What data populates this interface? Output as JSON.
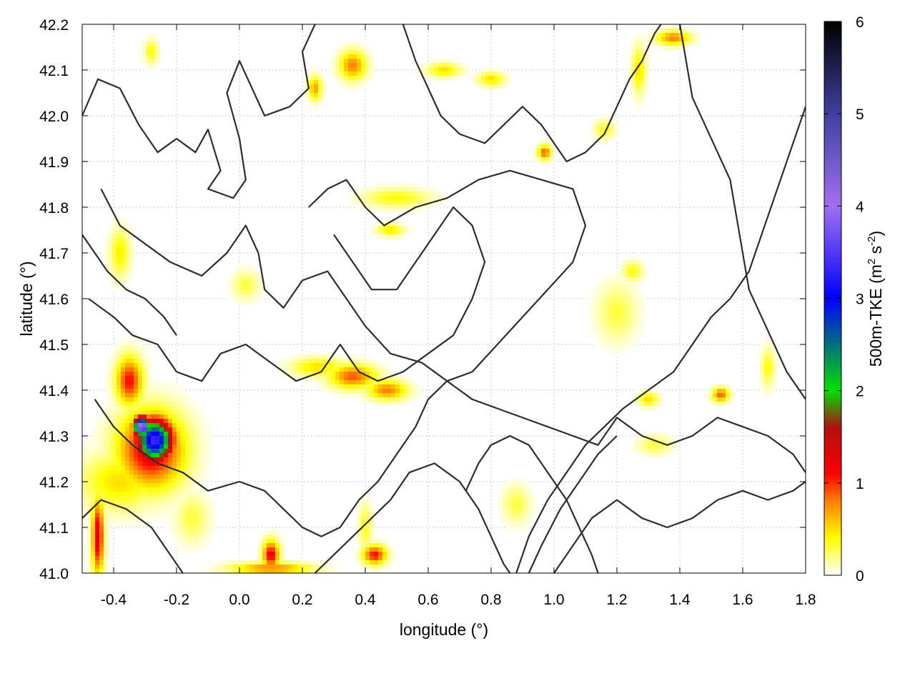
{
  "chart_data": {
    "type": "heatmap",
    "title": "",
    "xlabel": "longitude (°)",
    "ylabel": "latitude (°)",
    "xlim": [
      -0.5,
      1.8
    ],
    "ylim": [
      41.0,
      42.2
    ],
    "xticks": [
      "-0.4",
      "-0.2",
      "0.0",
      "0.2",
      "0.4",
      "0.6",
      "0.8",
      "1.0",
      "1.2",
      "1.4",
      "1.6",
      "1.8"
    ],
    "xtick_values": [
      -0.4,
      -0.2,
      0.0,
      0.2,
      0.4,
      0.6,
      0.8,
      1.0,
      1.2,
      1.4,
      1.6,
      1.8
    ],
    "yticks": [
      "41.0",
      "41.1",
      "41.2",
      "41.3",
      "41.4",
      "41.5",
      "41.6",
      "41.7",
      "41.8",
      "41.9",
      "42.0",
      "42.1",
      "42.2"
    ],
    "ytick_values": [
      41.0,
      41.1,
      41.2,
      41.3,
      41.4,
      41.5,
      41.6,
      41.7,
      41.8,
      41.9,
      42.0,
      42.1,
      42.2
    ],
    "grid": true,
    "colorbar": {
      "label": "500m-TKE (m² s⁻²)",
      "label_main": "500m-TKE (m",
      "label_sup1": "2",
      "label_mid": " s",
      "label_sup2": "-2",
      "label_end": ")",
      "range": [
        0,
        6
      ],
      "ticks": [
        "0",
        "1",
        "2",
        "3",
        "4",
        "5",
        "6"
      ],
      "tick_values": [
        0,
        1,
        2,
        3,
        4,
        5,
        6
      ],
      "stops": [
        {
          "value": 0.0,
          "color": "#ffffff"
        },
        {
          "value": 0.4,
          "color": "#ffff00"
        },
        {
          "value": 0.8,
          "color": "#ff8000"
        },
        {
          "value": 1.1,
          "color": "#ff0000"
        },
        {
          "value": 1.6,
          "color": "#b01010"
        },
        {
          "value": 2.0,
          "color": "#00e000"
        },
        {
          "value": 3.0,
          "color": "#0000ff"
        },
        {
          "value": 4.0,
          "color": "#a070f0"
        },
        {
          "value": 5.0,
          "color": "#4040a0"
        },
        {
          "value": 6.0,
          "color": "#000000"
        }
      ]
    },
    "tke_hotspots": [
      {
        "lon": -0.27,
        "lat": 41.29,
        "value": 3.4,
        "rx": 0.055,
        "ry": 0.045
      },
      {
        "lon": -0.31,
        "lat": 41.32,
        "value": 4.3,
        "rx": 0.025,
        "ry": 0.02
      },
      {
        "lon": -0.28,
        "lat": 41.27,
        "value": 1.3,
        "rx": 0.1,
        "ry": 0.08
      },
      {
        "lon": -0.38,
        "lat": 41.2,
        "value": 0.5,
        "rx": 0.12,
        "ry": 0.06
      },
      {
        "lon": -0.35,
        "lat": 41.42,
        "value": 1.1,
        "rx": 0.04,
        "ry": 0.05
      },
      {
        "lon": -0.45,
        "lat": 41.08,
        "value": 1.3,
        "rx": 0.018,
        "ry": 0.08
      },
      {
        "lon": 0.1,
        "lat": 41.04,
        "value": 1.2,
        "rx": 0.025,
        "ry": 0.03
      },
      {
        "lon": 0.1,
        "lat": 41.01,
        "value": 0.8,
        "rx": 0.12,
        "ry": 0.012
      },
      {
        "lon": 0.43,
        "lat": 41.04,
        "value": 1.1,
        "rx": 0.035,
        "ry": 0.02
      },
      {
        "lon": 0.36,
        "lat": 41.43,
        "value": 0.9,
        "rx": 0.07,
        "ry": 0.025
      },
      {
        "lon": 0.47,
        "lat": 41.4,
        "value": 0.8,
        "rx": 0.06,
        "ry": 0.02
      },
      {
        "lon": 0.25,
        "lat": 41.45,
        "value": 0.5,
        "rx": 0.08,
        "ry": 0.02
      },
      {
        "lon": 0.36,
        "lat": 42.11,
        "value": 0.8,
        "rx": 0.04,
        "ry": 0.03
      },
      {
        "lon": 0.24,
        "lat": 42.06,
        "value": 0.7,
        "rx": 0.02,
        "ry": 0.025
      },
      {
        "lon": 0.97,
        "lat": 41.92,
        "value": 0.9,
        "rx": 0.02,
        "ry": 0.015
      },
      {
        "lon": 1.38,
        "lat": 42.17,
        "value": 0.8,
        "rx": 0.05,
        "ry": 0.015
      },
      {
        "lon": 1.53,
        "lat": 41.39,
        "value": 0.9,
        "rx": 0.025,
        "ry": 0.015
      },
      {
        "lon": 1.3,
        "lat": 41.38,
        "value": 0.5,
        "rx": 0.03,
        "ry": 0.015
      },
      {
        "lon": 0.5,
        "lat": 41.82,
        "value": 0.4,
        "rx": 0.1,
        "ry": 0.02
      },
      {
        "lon": 0.48,
        "lat": 41.75,
        "value": 0.5,
        "rx": 0.04,
        "ry": 0.012
      },
      {
        "lon": 1.27,
        "lat": 42.1,
        "value": 0.5,
        "rx": 0.02,
        "ry": 0.05
      },
      {
        "lon": -0.38,
        "lat": 41.7,
        "value": 0.45,
        "rx": 0.03,
        "ry": 0.05
      },
      {
        "lon": 0.02,
        "lat": 41.63,
        "value": 0.3,
        "rx": 0.04,
        "ry": 0.03
      },
      {
        "lon": 1.2,
        "lat": 41.57,
        "value": 0.3,
        "rx": 0.06,
        "ry": 0.06
      },
      {
        "lon": 1.25,
        "lat": 41.66,
        "value": 0.4,
        "rx": 0.03,
        "ry": 0.02
      },
      {
        "lon": 0.65,
        "lat": 42.1,
        "value": 0.5,
        "rx": 0.05,
        "ry": 0.015
      },
      {
        "lon": 0.8,
        "lat": 42.08,
        "value": 0.5,
        "rx": 0.04,
        "ry": 0.015
      },
      {
        "lon": 0.88,
        "lat": 41.15,
        "value": 0.3,
        "rx": 0.04,
        "ry": 0.04
      },
      {
        "lon": 1.68,
        "lat": 41.45,
        "value": 0.4,
        "rx": 0.02,
        "ry": 0.04
      },
      {
        "lon": -0.15,
        "lat": 41.12,
        "value": 0.3,
        "rx": 0.05,
        "ry": 0.05
      },
      {
        "lon": 0.4,
        "lat": 41.1,
        "value": 0.35,
        "rx": 0.02,
        "ry": 0.05
      },
      {
        "lon": 1.16,
        "lat": 41.97,
        "value": 0.35,
        "rx": 0.03,
        "ry": 0.02
      },
      {
        "lon": -0.28,
        "lat": 42.14,
        "value": 0.4,
        "rx": 0.02,
        "ry": 0.025
      },
      {
        "lon": 1.32,
        "lat": 41.28,
        "value": 0.3,
        "rx": 0.05,
        "ry": 0.02
      }
    ],
    "orography_contours": [
      [
        [
          -0.5,
          42.0
        ],
        [
          -0.45,
          42.08
        ],
        [
          -0.38,
          42.06
        ],
        [
          -0.32,
          41.98
        ],
        [
          -0.26,
          41.92
        ],
        [
          -0.2,
          41.95
        ],
        [
          -0.14,
          41.92
        ],
        [
          -0.1,
          41.97
        ],
        [
          -0.06,
          41.88
        ],
        [
          -0.1,
          41.84
        ],
        [
          -0.02,
          41.82
        ],
        [
          0.02,
          41.86
        ],
        [
          0.0,
          41.95
        ],
        [
          -0.04,
          42.05
        ],
        [
          0.0,
          42.12
        ],
        [
          0.04,
          42.06
        ],
        [
          0.08,
          42.0
        ],
        [
          0.16,
          42.02
        ],
        [
          0.22,
          42.06
        ],
        [
          0.2,
          42.14
        ],
        [
          0.24,
          42.2
        ]
      ],
      [
        [
          -0.44,
          41.84
        ],
        [
          -0.38,
          41.76
        ],
        [
          -0.3,
          41.72
        ],
        [
          -0.22,
          41.68
        ],
        [
          -0.12,
          41.65
        ],
        [
          -0.04,
          41.7
        ],
        [
          0.02,
          41.76
        ],
        [
          0.06,
          41.7
        ],
        [
          0.08,
          41.62
        ],
        [
          0.14,
          41.58
        ],
        [
          0.2,
          41.64
        ],
        [
          0.28,
          41.66
        ],
        [
          0.34,
          41.6
        ],
        [
          0.4,
          41.54
        ],
        [
          0.48,
          41.48
        ],
        [
          0.58,
          41.46
        ],
        [
          0.66,
          41.42
        ],
        [
          0.74,
          41.44
        ],
        [
          0.82,
          41.5
        ],
        [
          0.9,
          41.56
        ],
        [
          0.98,
          41.62
        ],
        [
          1.06,
          41.68
        ],
        [
          1.1,
          41.76
        ],
        [
          1.06,
          41.84
        ],
        [
          0.96,
          41.86
        ],
        [
          0.86,
          41.88
        ],
        [
          0.76,
          41.86
        ],
        [
          0.66,
          41.82
        ],
        [
          0.56,
          41.8
        ],
        [
          0.46,
          41.76
        ],
        [
          0.4,
          41.8
        ],
        [
          0.34,
          41.86
        ],
        [
          0.28,
          41.84
        ],
        [
          0.22,
          41.8
        ]
      ],
      [
        [
          -0.48,
          41.6
        ],
        [
          -0.4,
          41.56
        ],
        [
          -0.34,
          41.52
        ],
        [
          -0.26,
          41.5
        ],
        [
          -0.2,
          41.44
        ],
        [
          -0.12,
          41.42
        ],
        [
          -0.06,
          41.48
        ],
        [
          0.02,
          41.5
        ],
        [
          0.1,
          41.46
        ],
        [
          0.18,
          41.42
        ],
        [
          0.26,
          41.44
        ],
        [
          0.32,
          41.5
        ],
        [
          0.38,
          41.44
        ],
        [
          0.44,
          41.42
        ],
        [
          0.52,
          41.44
        ],
        [
          0.6,
          41.48
        ],
        [
          0.68,
          41.52
        ],
        [
          0.74,
          41.6
        ],
        [
          0.78,
          41.68
        ],
        [
          0.74,
          41.76
        ],
        [
          0.68,
          41.8
        ],
        [
          0.62,
          41.74
        ],
        [
          0.56,
          41.68
        ],
        [
          0.5,
          41.62
        ],
        [
          0.42,
          41.62
        ],
        [
          0.36,
          41.68
        ],
        [
          0.3,
          41.74
        ]
      ],
      [
        [
          -0.46,
          41.38
        ],
        [
          -0.4,
          41.32
        ],
        [
          -0.34,
          41.28
        ],
        [
          -0.26,
          41.24
        ],
        [
          -0.18,
          41.22
        ],
        [
          -0.1,
          41.18
        ],
        [
          0.0,
          41.2
        ],
        [
          0.08,
          41.18
        ],
        [
          0.14,
          41.14
        ],
        [
          0.2,
          41.1
        ],
        [
          0.26,
          41.08
        ],
        [
          0.32,
          41.1
        ],
        [
          0.38,
          41.16
        ],
        [
          0.44,
          41.2
        ],
        [
          0.5,
          41.26
        ],
        [
          0.56,
          41.32
        ],
        [
          0.6,
          41.38
        ],
        [
          0.66,
          41.42
        ],
        [
          0.74,
          41.38
        ],
        [
          0.82,
          41.36
        ],
        [
          0.9,
          41.34
        ],
        [
          0.98,
          41.32
        ],
        [
          1.06,
          41.3
        ],
        [
          1.14,
          41.28
        ],
        [
          1.2,
          41.34
        ],
        [
          1.28,
          41.3
        ],
        [
          1.36,
          41.28
        ],
        [
          1.44,
          41.3
        ],
        [
          1.52,
          41.34
        ],
        [
          1.6,
          41.32
        ],
        [
          1.68,
          41.3
        ],
        [
          1.76,
          41.26
        ],
        [
          1.8,
          41.22
        ]
      ],
      [
        [
          -0.5,
          41.12
        ],
        [
          -0.44,
          41.16
        ],
        [
          -0.36,
          41.14
        ],
        [
          -0.28,
          41.1
        ],
        [
          -0.22,
          41.04
        ],
        [
          -0.18,
          41.0
        ]
      ],
      [
        [
          0.24,
          41.0
        ],
        [
          0.3,
          41.04
        ],
        [
          0.36,
          41.08
        ],
        [
          0.42,
          41.12
        ],
        [
          0.48,
          41.16
        ],
        [
          0.54,
          41.22
        ],
        [
          0.62,
          41.24
        ],
        [
          0.7,
          41.2
        ],
        [
          0.76,
          41.14
        ],
        [
          0.8,
          41.08
        ],
        [
          0.84,
          41.02
        ],
        [
          0.86,
          41.0
        ]
      ],
      [
        [
          0.92,
          41.0
        ],
        [
          0.96,
          41.06
        ],
        [
          1.02,
          41.14
        ],
        [
          1.08,
          41.2
        ],
        [
          1.14,
          41.26
        ],
        [
          1.2,
          41.3
        ]
      ],
      [
        [
          0.88,
          41.0
        ],
        [
          0.92,
          41.08
        ],
        [
          0.98,
          41.16
        ],
        [
          1.04,
          41.22
        ],
        [
          1.1,
          41.28
        ],
        [
          1.16,
          41.32
        ],
        [
          1.22,
          41.36
        ],
        [
          1.3,
          41.4
        ],
        [
          1.38,
          41.44
        ],
        [
          1.44,
          41.5
        ],
        [
          1.5,
          41.56
        ],
        [
          1.56,
          41.6
        ],
        [
          1.62,
          41.66
        ],
        [
          1.66,
          41.74
        ],
        [
          1.7,
          41.82
        ],
        [
          1.74,
          41.9
        ],
        [
          1.78,
          41.98
        ],
        [
          1.8,
          42.02
        ]
      ],
      [
        [
          1.0,
          41.0
        ],
        [
          1.06,
          41.06
        ],
        [
          1.12,
          41.12
        ],
        [
          1.2,
          41.16
        ],
        [
          1.28,
          41.12
        ],
        [
          1.36,
          41.1
        ],
        [
          1.44,
          41.12
        ],
        [
          1.52,
          41.16
        ],
        [
          1.6,
          41.18
        ],
        [
          1.68,
          41.16
        ],
        [
          1.76,
          41.18
        ],
        [
          1.8,
          41.2
        ]
      ],
      [
        [
          0.52,
          42.2
        ],
        [
          0.56,
          42.12
        ],
        [
          0.6,
          42.06
        ],
        [
          0.64,
          42.0
        ],
        [
          0.7,
          41.96
        ],
        [
          0.78,
          41.94
        ],
        [
          0.84,
          41.98
        ],
        [
          0.9,
          42.02
        ],
        [
          0.96,
          41.98
        ],
        [
          1.0,
          41.94
        ],
        [
          1.04,
          41.9
        ],
        [
          1.1,
          41.92
        ],
        [
          1.16,
          41.96
        ],
        [
          1.2,
          42.02
        ],
        [
          1.24,
          42.08
        ],
        [
          1.28,
          42.12
        ],
        [
          1.32,
          42.18
        ],
        [
          1.34,
          42.2
        ]
      ],
      [
        [
          1.4,
          42.2
        ],
        [
          1.42,
          42.12
        ],
        [
          1.44,
          42.04
        ],
        [
          1.48,
          41.98
        ],
        [
          1.52,
          41.92
        ],
        [
          1.56,
          41.86
        ],
        [
          1.58,
          41.78
        ],
        [
          1.6,
          41.7
        ],
        [
          1.62,
          41.62
        ],
        [
          1.66,
          41.56
        ],
        [
          1.7,
          41.5
        ],
        [
          1.74,
          41.44
        ],
        [
          1.78,
          41.4
        ],
        [
          1.8,
          41.38
        ]
      ],
      [
        [
          -0.5,
          41.74
        ],
        [
          -0.46,
          41.7
        ],
        [
          -0.42,
          41.66
        ],
        [
          -0.36,
          41.62
        ],
        [
          -0.3,
          41.6
        ],
        [
          -0.24,
          41.56
        ],
        [
          -0.2,
          41.52
        ]
      ],
      [
        [
          0.72,
          41.18
        ],
        [
          0.76,
          41.24
        ],
        [
          0.8,
          41.28
        ],
        [
          0.86,
          41.3
        ],
        [
          0.92,
          41.28
        ],
        [
          0.96,
          41.24
        ],
        [
          1.0,
          41.2
        ],
        [
          1.04,
          41.16
        ],
        [
          1.08,
          41.1
        ],
        [
          1.12,
          41.04
        ],
        [
          1.14,
          41.0
        ]
      ]
    ]
  }
}
